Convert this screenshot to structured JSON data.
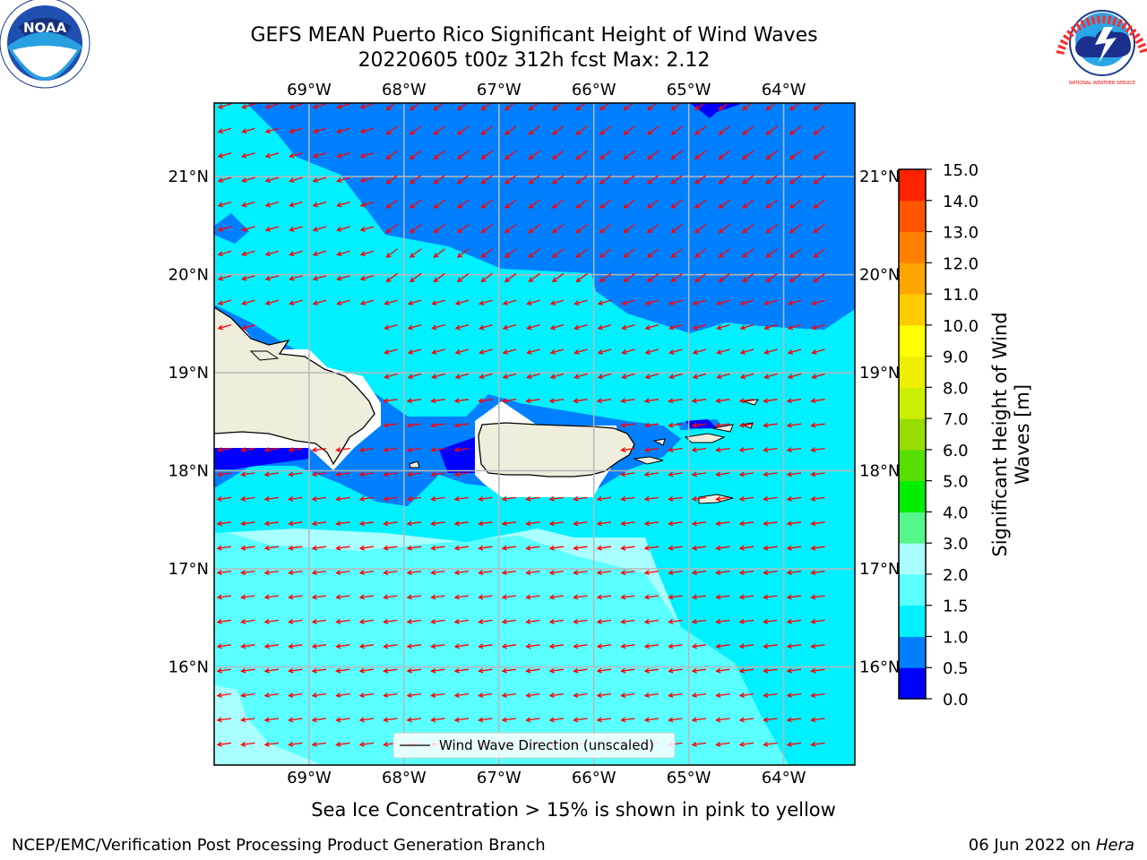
{
  "header": {
    "title_line1": "GEFS MEAN Puerto Rico Significant Height of Wind Waves",
    "title_line2": "20220605 t00z 312h fcst   Max: 2.12",
    "noaa_logo_text": "NOAA",
    "nws_logo_text": "NATIONAL WEATHER SERVICE"
  },
  "map": {
    "lon_ticks": [
      "69°W",
      "68°W",
      "67°W",
      "66°W",
      "65°W",
      "64°W"
    ],
    "lat_ticks": [
      "21°N",
      "20°N",
      "19°N",
      "18°N",
      "17°N",
      "16°N"
    ],
    "legend_label": "Wind Wave Direction (unscaled)",
    "arrow_color": "#ff0000",
    "land_color": "#efeddc",
    "lon_range": [
      -70,
      -63.25
    ],
    "lat_range": [
      15,
      21.75
    ]
  },
  "colorbar": {
    "label_line1": "Significant Height of Wind",
    "label_line2": "Waves [m]",
    "ticks": [
      "0.0",
      "0.5",
      "1.0",
      "1.5",
      "2.0",
      "3.0",
      "4.0",
      "5.0",
      "6.0",
      "7.0",
      "8.0",
      "9.0",
      "10.0",
      "11.0",
      "12.0",
      "13.0",
      "14.0",
      "15.0"
    ],
    "colors": [
      "#0000ff",
      "#0080ff",
      "#00f0ff",
      "#5affff",
      "#a9ffff",
      "#55f78a",
      "#00ee00",
      "#55e000",
      "#99dd00",
      "#ccee00",
      "#eeee00",
      "#ffff00",
      "#ffcc00",
      "#ffa500",
      "#ff8000",
      "#ff5500",
      "#ff2200"
    ]
  },
  "footer": {
    "note": "Sea Ice Concentration > 15% is shown in pink to yellow",
    "credit": "NCEP/EMC/Verification Post Processing Product Generation Branch",
    "date": "06 Jun 2022 on",
    "host": "Hera"
  }
}
